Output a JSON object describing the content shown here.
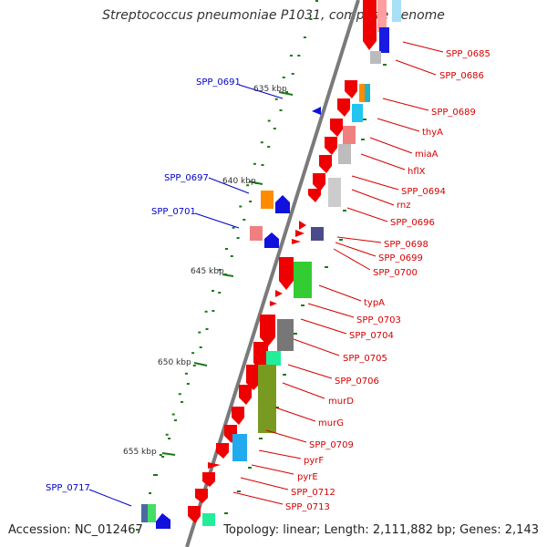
{
  "title": "Streptococcus pneumoniae P1031, complete genome",
  "footer": {
    "accession": "Accession: NC_012467",
    "summary": "Topology: linear; Length: 2,111,882 bp; Genes: 2,143"
  },
  "colors": {
    "backbone": "#7a7a7a",
    "forward_label": "#d40000",
    "reverse_label": "#0000c8",
    "tick": "#1a7a1a"
  },
  "ruler": [
    "635 kbp",
    "640 kbp",
    "645 kbp",
    "650 kbp",
    "655 kbp"
  ],
  "forward_labels": [
    "SPP_0685",
    "SPP_0686",
    "SPP_0689",
    "thyA",
    "miaA",
    "hflX",
    "SPP_0694",
    "rnz",
    "SPP_0696",
    "SPP_0698",
    "SPP_0699",
    "SPP_0700",
    "typA",
    "SPP_0703",
    "SPP_0704",
    "SPP_0705",
    "SPP_0706",
    "murD",
    "murG",
    "SPP_0709",
    "pyrF",
    "pyrE",
    "SPP_0712",
    "SPP_0713"
  ],
  "reverse_labels": [
    "SPP_0691",
    "SPP_0697",
    "SPP_0701",
    "SPP_0717"
  ]
}
